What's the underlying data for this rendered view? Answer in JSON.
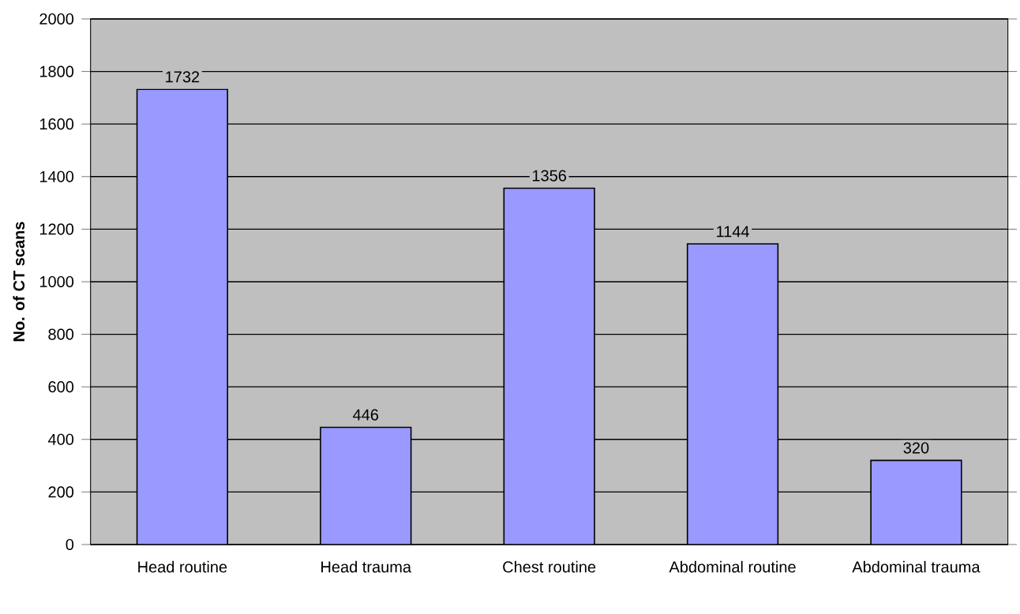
{
  "chart_data": {
    "type": "bar",
    "ylabel": "No. of CT scans",
    "categories": [
      "Head routine",
      "Head trauma",
      "Chest routine",
      "Abdominal routine",
      "Abdominal trauma"
    ],
    "values": [
      1732,
      446,
      1356,
      1144,
      320
    ],
    "color": "#9999ff",
    "ylim": [
      0,
      2000
    ],
    "yticks": [
      0,
      200,
      400,
      600,
      800,
      1000,
      1200,
      1400,
      1600,
      1800,
      2000
    ],
    "grid": "y",
    "data_labels": true
  }
}
